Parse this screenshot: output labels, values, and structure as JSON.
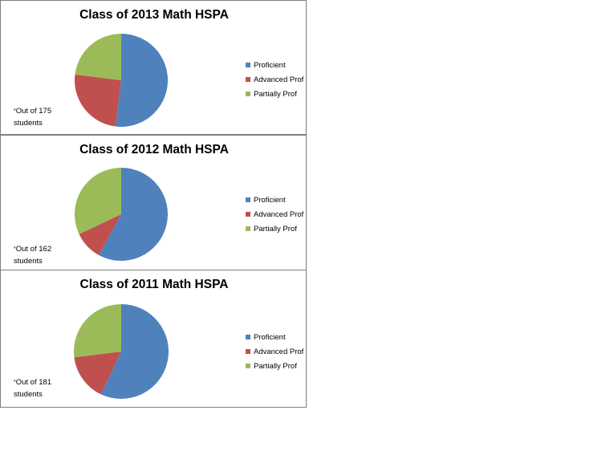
{
  "chart_data": [
    {
      "type": "pie",
      "title": "Class of 2013 Math HSPA",
      "categories": [
        "Proficient",
        "Advanced Prof",
        "Partially Prof"
      ],
      "values": [
        52,
        25,
        23
      ],
      "colors": [
        "#4f81bd",
        "#c0504d",
        "#9bbb59"
      ],
      "legend_position": "right",
      "annotation": {
        "star": "*",
        "line1": "Out of 175",
        "line2": "students"
      }
    },
    {
      "type": "pie",
      "title": "Class of 2012 Math HSPA",
      "categories": [
        "Proficient",
        "Advanced Prof",
        "Partially Prof"
      ],
      "values": [
        58,
        10,
        32
      ],
      "colors": [
        "#4f81bd",
        "#c0504d",
        "#9bbb59"
      ],
      "legend_position": "right",
      "annotation": {
        "star": "*",
        "line1": "Out of 162",
        "line2": "students"
      }
    },
    {
      "type": "pie",
      "title": "Class of 2011 Math HSPA",
      "categories": [
        "Proficient",
        "Advanced Prof",
        "Partially Prof"
      ],
      "values": [
        57,
        16,
        27
      ],
      "colors": [
        "#4f81bd",
        "#c0504d",
        "#9bbb59"
      ],
      "legend_position": "right",
      "annotation": {
        "star": "*",
        "line1": "Out of 181",
        "line2": "students"
      }
    }
  ]
}
